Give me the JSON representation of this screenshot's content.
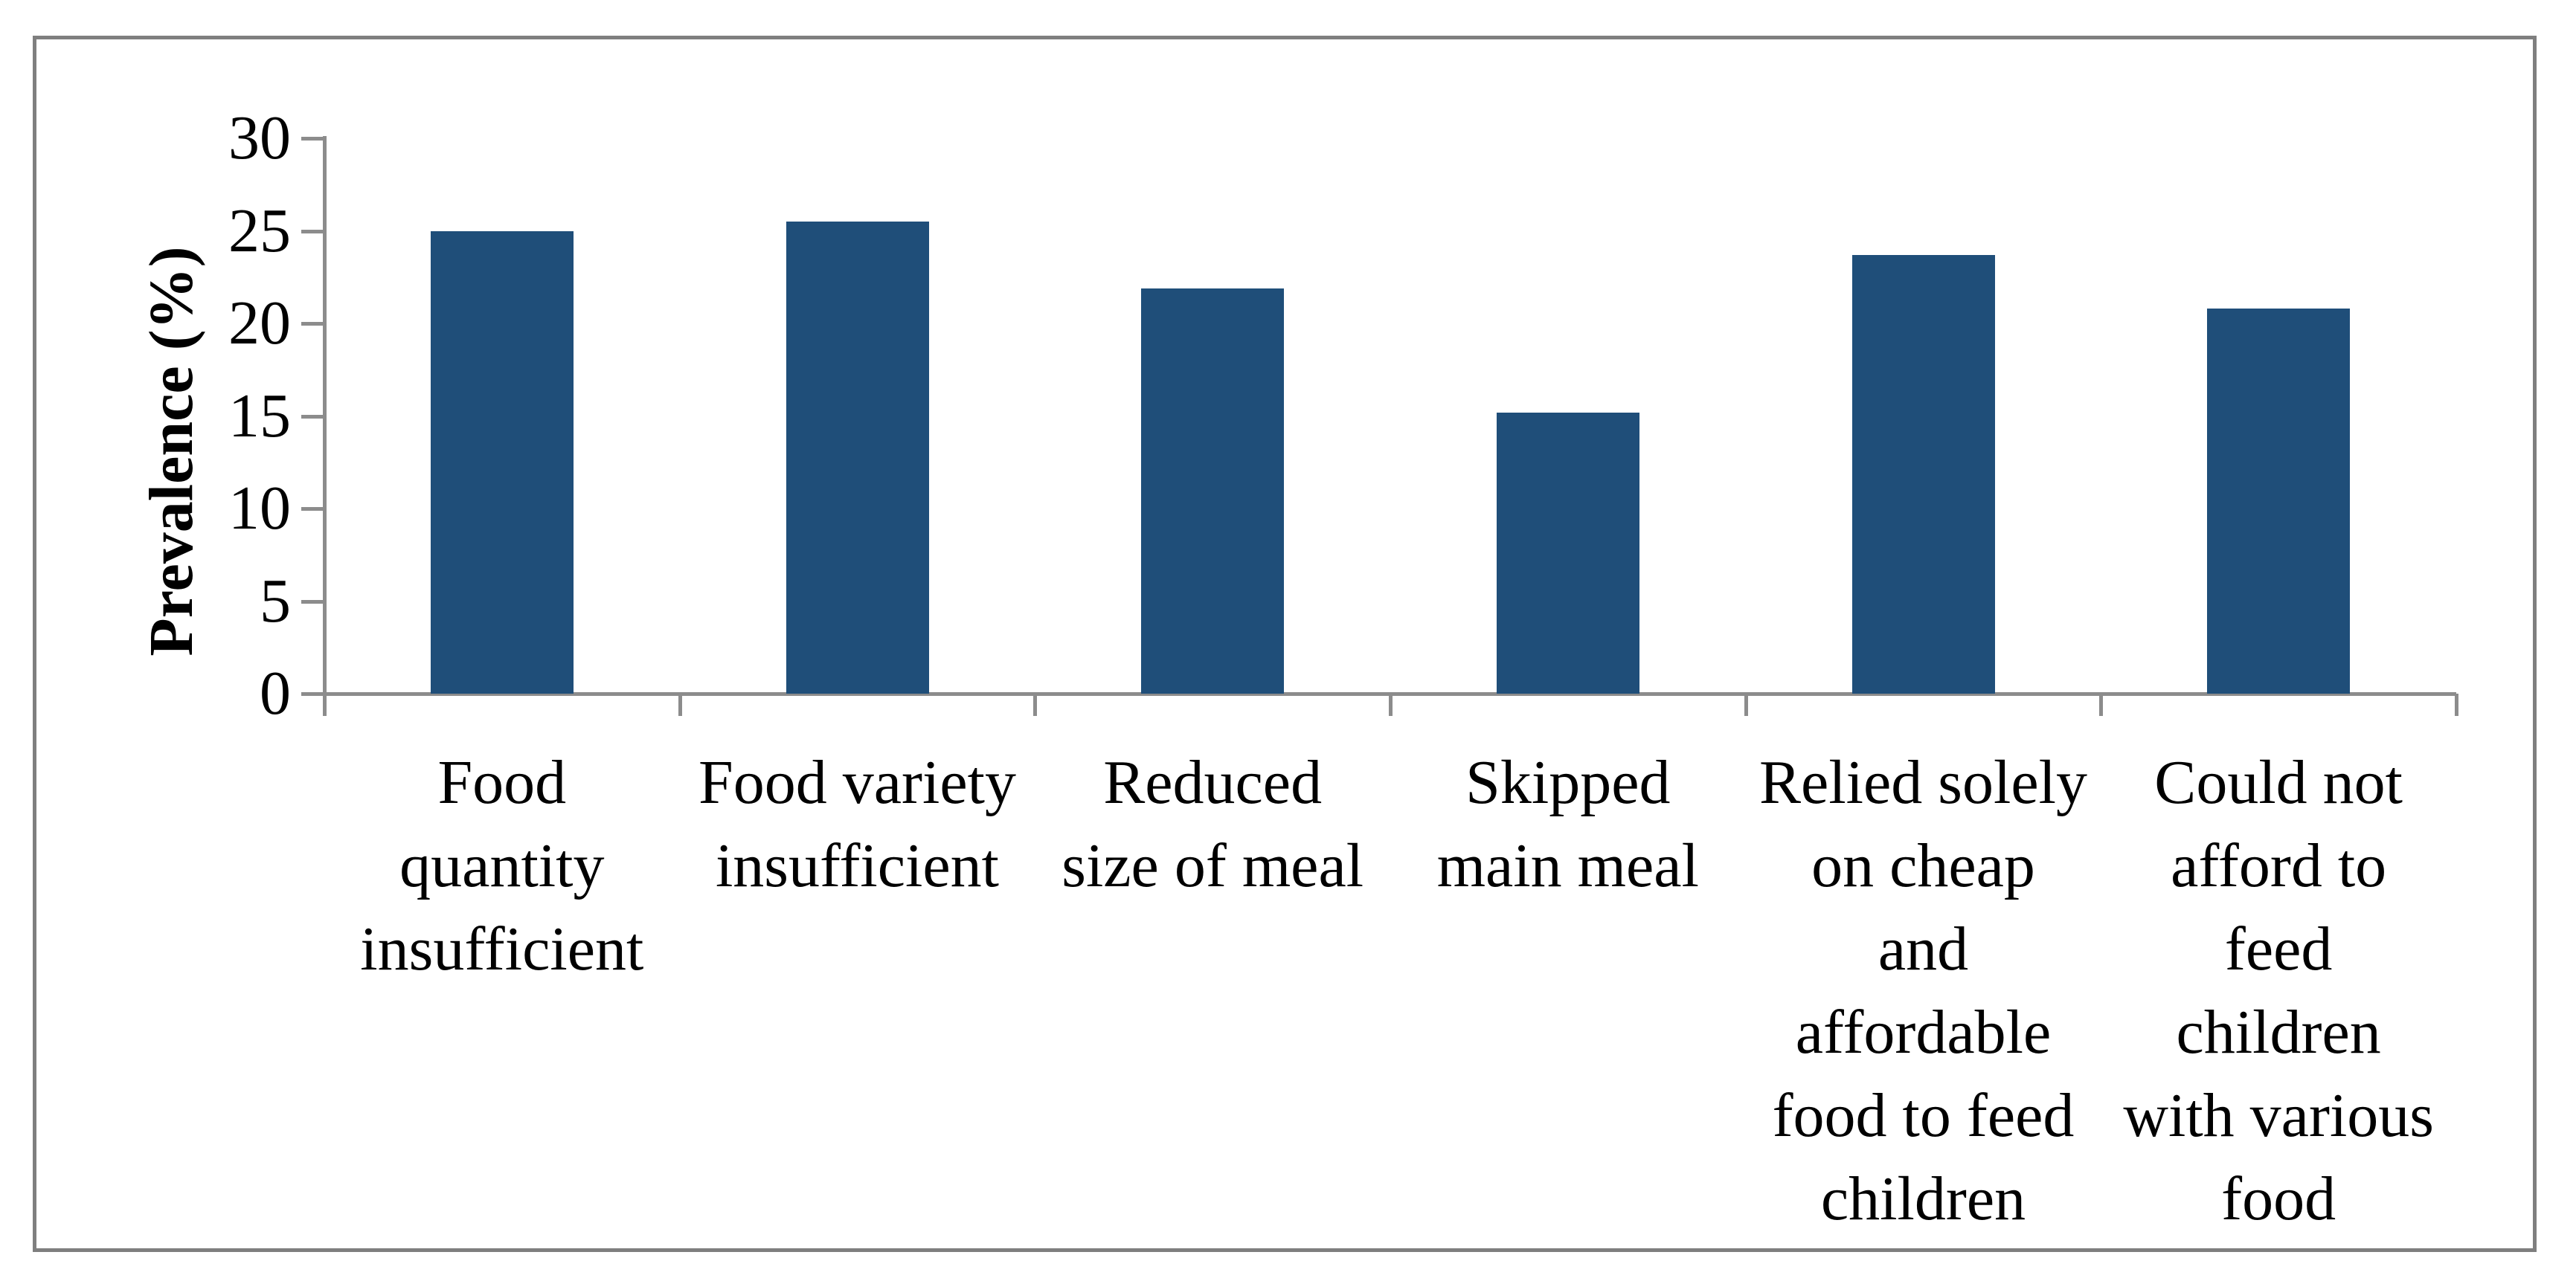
{
  "figure": {
    "background": "#FFFFFF",
    "border_color": "#7F7F7F"
  },
  "chart_data": {
    "type": "bar",
    "title": "",
    "xlabel": "",
    "ylabel": "Prevalence (%)",
    "ylim": [
      0,
      30
    ],
    "yticks": [
      0,
      5,
      10,
      15,
      20,
      25,
      30
    ],
    "grid": false,
    "legend_position": "none",
    "bar_color": "#1F4E79",
    "axis_color": "#8C8C8C",
    "categories": [
      "Food quantity insufficient",
      "Food variety insufficient",
      "Reduced size of meal",
      "Skipped main meal",
      "Relied solely on cheap and affordable food to feed children",
      "Could not afford to feed children with various food"
    ],
    "category_lines": [
      [
        "Food",
        "quantity",
        "insufficient"
      ],
      [
        "Food variety",
        "insufficient"
      ],
      [
        "Reduced",
        "size of meal"
      ],
      [
        "Skipped",
        "main meal"
      ],
      [
        "Relied solely",
        "on cheap",
        "and",
        "affordable",
        "food to feed",
        "children"
      ],
      [
        "Could not",
        "afford to",
        "feed",
        "children",
        "with various",
        "food"
      ]
    ],
    "values": [
      25.0,
      25.5,
      21.9,
      15.2,
      23.7,
      20.8
    ]
  }
}
